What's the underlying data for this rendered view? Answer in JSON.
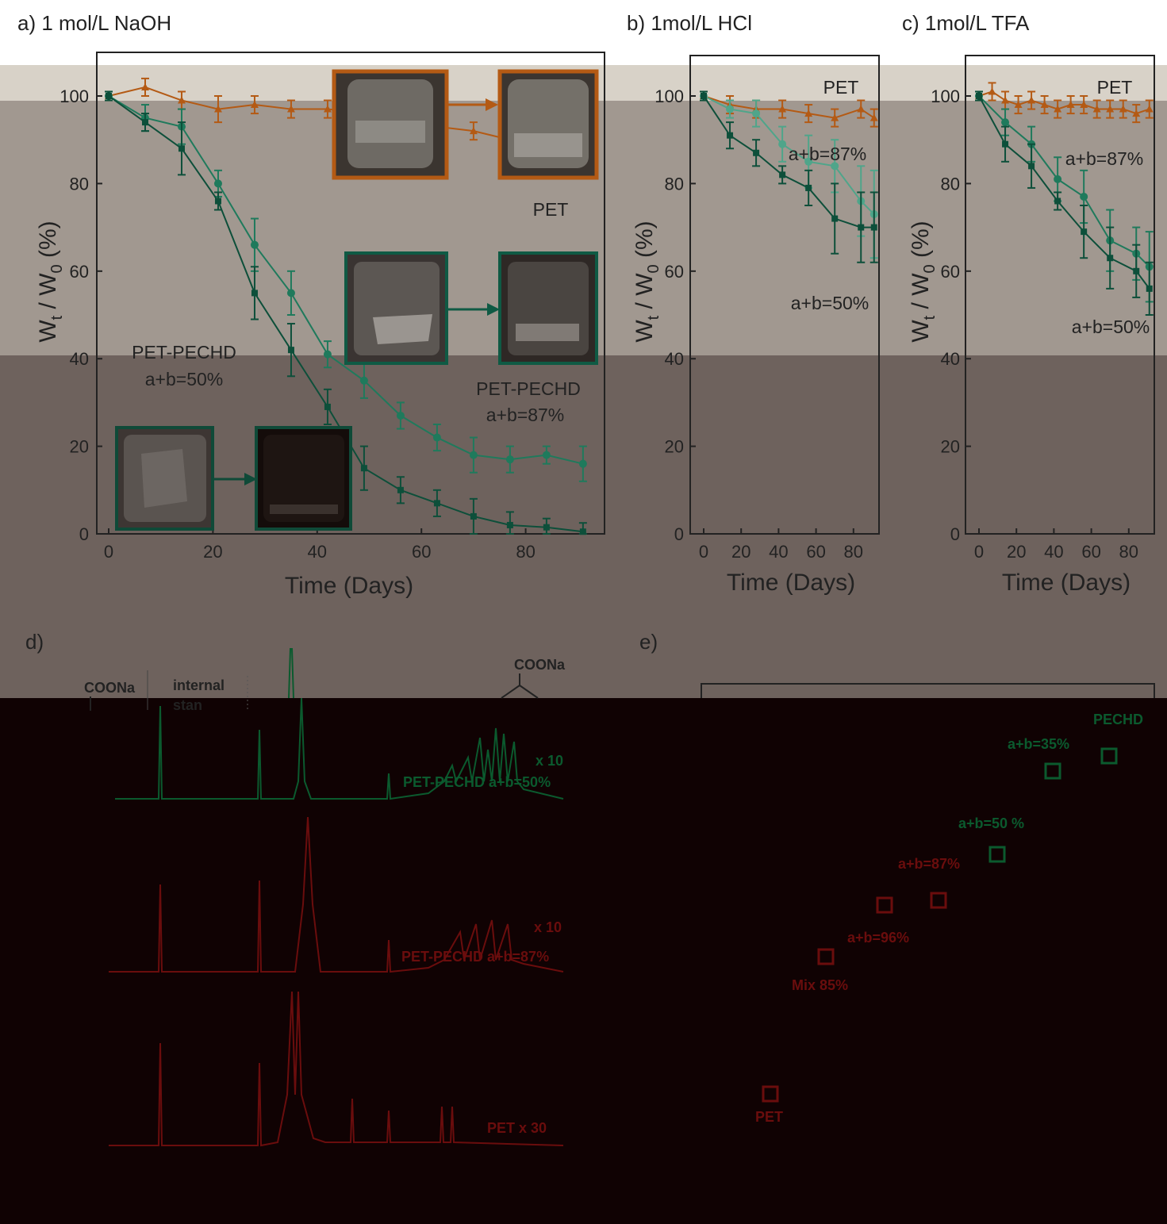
{
  "panels": {
    "a": {
      "label": "a) 1 mol/L NaOH"
    },
    "b": {
      "label": "b) 1mol/L HCl"
    },
    "c": {
      "label": "c) 1mol/L TFA"
    },
    "d": {
      "label": "d)"
    },
    "e": {
      "label": "e)"
    }
  },
  "colors": {
    "pet": "#b45a14",
    "pechd50": "#0d4f3a",
    "pechd87": "#1f7a5c",
    "pechd87_light": "#4fa58a",
    "nmr_green": "#0b5a2e",
    "nmr_red": "#6a0d0d",
    "overlay_light": "#d8d2c8",
    "overlay_mid": "#a19890",
    "overlay_dark": "#6e625d",
    "overlay_black": "#100203"
  },
  "chart_data": [
    {
      "id": "a",
      "type": "line",
      "xlabel": "Time (Days)",
      "ylabel": "W_t / W_0 (%)",
      "xlim": [
        0,
        95
      ],
      "ylim": [
        0,
        100
      ],
      "xticks": [
        "0",
        "20",
        "40",
        "60",
        "80"
      ],
      "yticks": [
        "0",
        "20",
        "40",
        "60",
        "80",
        "100"
      ],
      "annotations": [
        "PET",
        "PET-PECHD",
        "a+b=50%",
        "PET-PECHD",
        "a+b=87%"
      ],
      "series": [
        {
          "key": "pet",
          "marker": "triangle",
          "x": [
            0,
            7,
            14,
            21,
            28,
            35,
            42,
            49,
            56,
            63,
            70,
            77,
            84,
            91
          ],
          "y": [
            100,
            102,
            99,
            97,
            98,
            97,
            97,
            96,
            95,
            93,
            92,
            90,
            90,
            88
          ],
          "err": [
            1,
            2,
            2,
            3,
            2,
            2,
            2,
            3,
            2,
            3,
            2,
            3,
            2,
            3
          ]
        },
        {
          "key": "pechd87",
          "marker": "circle",
          "x": [
            0,
            7,
            14,
            21,
            28,
            35,
            42,
            49,
            56,
            63,
            70,
            77,
            84,
            91
          ],
          "y": [
            100,
            95,
            93,
            80,
            66,
            55,
            41,
            35,
            27,
            22,
            18,
            17,
            18,
            16
          ],
          "err": [
            1,
            3,
            4,
            3,
            6,
            5,
            3,
            4,
            3,
            3,
            4,
            3,
            2,
            4
          ]
        },
        {
          "key": "pechd50",
          "marker": "square",
          "x": [
            0,
            7,
            14,
            21,
            28,
            35,
            42,
            49,
            56,
            63,
            70,
            77,
            84,
            91
          ],
          "y": [
            100,
            94,
            88,
            76,
            55,
            42,
            29,
            15,
            10,
            7,
            4,
            2,
            1.5,
            0.5
          ],
          "err": [
            1,
            2,
            6,
            2,
            6,
            6,
            4,
            5,
            3,
            3,
            4,
            3,
            2,
            2
          ]
        }
      ]
    },
    {
      "id": "b",
      "type": "line",
      "xlabel": "Time (Days)",
      "ylabel": "W_t / W_0 (%)",
      "xlim": [
        0,
        95
      ],
      "ylim": [
        0,
        100
      ],
      "xticks": [
        "0",
        "20",
        "40",
        "60",
        "80"
      ],
      "yticks": [
        "0",
        "20",
        "40",
        "60",
        "80",
        "100"
      ],
      "annotations": [
        "PET",
        "a+b=87%",
        "a+b=50%"
      ],
      "series": [
        {
          "key": "pet",
          "marker": "triangle",
          "x": [
            0,
            14,
            28,
            42,
            56,
            70,
            84,
            91
          ],
          "y": [
            100,
            98,
            97,
            97,
            96,
            95,
            97,
            95
          ],
          "err": [
            1,
            2,
            2,
            2,
            2,
            2,
            2,
            2
          ]
        },
        {
          "key": "pechd87_light",
          "marker": "circle",
          "x": [
            0,
            14,
            28,
            42,
            56,
            70,
            84,
            91
          ],
          "y": [
            100,
            97,
            96,
            89,
            85,
            84,
            76,
            73
          ],
          "err": [
            1,
            2,
            3,
            4,
            6,
            6,
            8,
            10
          ]
        },
        {
          "key": "pechd50",
          "marker": "square",
          "x": [
            0,
            14,
            28,
            42,
            56,
            70,
            84,
            91
          ],
          "y": [
            100,
            91,
            87,
            82,
            79,
            72,
            70,
            70
          ],
          "err": [
            1,
            3,
            3,
            2,
            4,
            8,
            8,
            8
          ]
        }
      ]
    },
    {
      "id": "c",
      "type": "line",
      "xlabel": "Time (Days)",
      "ylabel": "W_t / W_0 (%)",
      "xlim": [
        0,
        95
      ],
      "ylim": [
        0,
        100
      ],
      "xticks": [
        "0",
        "20",
        "40",
        "60",
        "80"
      ],
      "yticks": [
        "0",
        "20",
        "40",
        "60",
        "80",
        "100"
      ],
      "annotations": [
        "PET",
        "a+b=87%",
        "a+b=50%"
      ],
      "series": [
        {
          "key": "pet",
          "marker": "triangle",
          "x": [
            0,
            7,
            14,
            21,
            28,
            35,
            42,
            49,
            56,
            63,
            70,
            77,
            84,
            91
          ],
          "y": [
            100,
            101,
            99,
            98,
            99,
            98,
            97,
            98,
            98,
            97,
            97,
            97,
            96,
            97
          ],
          "err": [
            1,
            2,
            2,
            2,
            2,
            2,
            2,
            2,
            2,
            2,
            2,
            2,
            2,
            2
          ]
        },
        {
          "key": "pechd87",
          "marker": "circle",
          "x": [
            0,
            14,
            28,
            42,
            56,
            70,
            84,
            91
          ],
          "y": [
            100,
            94,
            89,
            81,
            77,
            67,
            64,
            61
          ],
          "err": [
            1,
            3,
            4,
            5,
            6,
            7,
            6,
            8
          ]
        },
        {
          "key": "pechd50",
          "marker": "square",
          "x": [
            0,
            14,
            28,
            42,
            56,
            70,
            84,
            91
          ],
          "y": [
            100,
            89,
            84,
            76,
            69,
            63,
            60,
            56
          ],
          "err": [
            1,
            4,
            5,
            2,
            6,
            7,
            6,
            6
          ]
        }
      ]
    }
  ],
  "panel_d": {
    "labels": {
      "coona_left": "COONa",
      "internal": "internal",
      "standard": "stan",
      "coona_right": "COONa",
      "green_trace": "PET-PECHD a+b=50%",
      "green_scale": "x 10",
      "red_trace_1": "PET-PECHD a+b=87%",
      "red_trace_1_scale": "x 10",
      "red_trace_2": "PET x 30"
    }
  },
  "panel_e": {
    "labels": {
      "pechd": "PECHD",
      "p35": "a+b=35%",
      "p50": "a+b=50 %",
      "p87": "a+b=87%",
      "p96": "a+b=96%",
      "mix": "Mix 85%",
      "pet": "PET"
    }
  }
}
